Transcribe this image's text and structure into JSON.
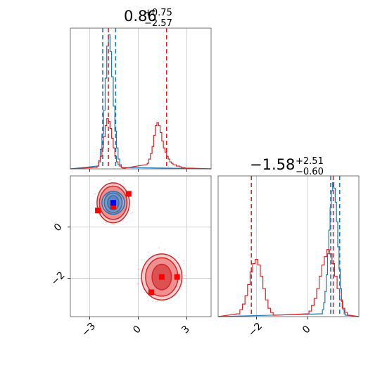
{
  "chart_data": [
    {
      "type": "histogram",
      "panel": "marginal-x",
      "title": {
        "value": "0.86",
        "upper": "+0.75",
        "lower": "−2.57"
      },
      "xlim": [
        -4.2,
        4.5
      ],
      "xticks": [
        -3,
        0,
        3
      ],
      "grid": true,
      "quantile_lines": [
        {
          "color": "#1f77b4",
          "values": [
            -2.2,
            -1.4
          ]
        },
        {
          "color": "#d62728",
          "values": [
            -1.85,
            1.75
          ]
        }
      ],
      "series": [
        {
          "color": "#1f77b4",
          "x": [
            -2.5,
            -2.4,
            -2.3,
            -2.2,
            -2.1,
            -2.0,
            -1.9,
            -1.8,
            -1.7,
            -1.6,
            -1.5,
            -1.4,
            -1.3,
            -1.2,
            -1.1,
            -1.0
          ],
          "values": [
            0.2,
            0.6,
            1.4,
            2.5,
            4.2,
            6.5,
            8.8,
            9.6,
            8.4,
            6.6,
            4.5,
            2.7,
            1.5,
            0.7,
            0.3,
            0.1
          ]
        },
        {
          "color": "#d62728",
          "x": [
            -2.6,
            -2.5,
            -2.4,
            -2.3,
            -2.2,
            -2.1,
            -2.0,
            -1.9,
            -1.8,
            -1.7,
            -1.6,
            -1.5,
            -1.4,
            -1.3,
            -1.2,
            -1.1,
            -1.0,
            -0.9,
            0.5,
            0.6,
            0.7,
            0.8,
            0.9,
            1.0,
            1.1,
            1.2,
            1.3,
            1.4,
            1.5,
            1.6,
            1.7,
            1.8,
            1.9,
            2.0,
            2.1,
            2.2,
            2.3,
            2.4,
            2.5,
            2.6,
            2.7,
            2.8,
            3.0,
            3.2
          ],
          "values": [
            0.1,
            0.2,
            0.5,
            0.9,
            1.5,
            2.3,
            3.1,
            3.6,
            3.4,
            2.9,
            2.2,
            1.5,
            0.9,
            0.5,
            0.3,
            0.2,
            0.1,
            0.05,
            0.3,
            0.4,
            0.7,
            1.1,
            1.6,
            2.4,
            3.1,
            3.3,
            3.1,
            2.6,
            2.0,
            1.5,
            1.2,
            0.9,
            0.7,
            0.5,
            0.4,
            0.3,
            0.3,
            0.2,
            0.2,
            0.15,
            0.1,
            0.1,
            0.05,
            0.05
          ]
        }
      ]
    },
    {
      "type": "contour",
      "panel": "joint",
      "xlim": [
        -4.2,
        4.5
      ],
      "ylim": [
        -3.5,
        2.0
      ],
      "xticks": [
        -3,
        0,
        3
      ],
      "yticks": [
        -2,
        0
      ],
      "grid": true,
      "modes": [
        {
          "color": "#d62728",
          "center": [
            -1.55,
            0.95
          ],
          "radii": [
            [
              0.55,
              0.45
            ],
            [
              0.85,
              0.65
            ],
            [
              1.0,
              0.78
            ]
          ]
        },
        {
          "color": "#1f77b4",
          "center": [
            -1.55,
            0.95
          ],
          "radii": [
            [
              0.35,
              0.28
            ],
            [
              0.55,
              0.38
            ],
            [
              0.7,
              0.45
            ]
          ]
        },
        {
          "color": "#d62728",
          "center": [
            1.45,
            -1.95
          ],
          "radii": [
            [
              0.6,
              0.5
            ],
            [
              1.0,
              0.75
            ],
            [
              1.25,
              0.9
            ]
          ]
        }
      ],
      "markers": [
        {
          "color": "#ff0000",
          "x": [
            -2.5,
            -0.6,
            -1.55,
            0.8,
            1.45,
            2.4
          ],
          "y": [
            0.65,
            1.3,
            0.8,
            -2.55,
            -1.95,
            -1.95
          ]
        },
        {
          "color": "#0000ff",
          "x": [
            -1.55
          ],
          "y": [
            0.95
          ]
        }
      ]
    },
    {
      "type": "histogram",
      "panel": "marginal-y",
      "title": {
        "value": "−1.58",
        "upper": "+2.51",
        "lower": "−0.60"
      },
      "xlim": [
        -3.5,
        2.0
      ],
      "xticks": [
        -2,
        0
      ],
      "grid": true,
      "quantile_lines": [
        {
          "color": "#1f77b4",
          "values": [
            0.9,
            1.25
          ]
        },
        {
          "color": "#d62728",
          "values": [
            -2.2,
            1.0
          ]
        }
      ],
      "series": [
        {
          "color": "#1f77b4",
          "x": [
            0.55,
            0.6,
            0.65,
            0.7,
            0.75,
            0.8,
            0.85,
            0.9,
            0.95,
            1.0,
            1.05,
            1.1,
            1.15,
            1.2,
            1.25,
            1.3,
            1.35,
            1.4,
            1.45,
            1.5
          ],
          "values": [
            0.2,
            0.5,
            1.0,
            1.8,
            3.0,
            4.5,
            6.2,
            7.8,
            9.0,
            9.6,
            9.2,
            8.2,
            6.8,
            5.0,
            3.4,
            2.0,
            1.1,
            0.5,
            0.2,
            0.1
          ]
        },
        {
          "color": "#d62728",
          "x": [
            -2.7,
            -2.6,
            -2.5,
            -2.4,
            -2.3,
            -2.2,
            -2.1,
            -2.0,
            -1.9,
            -1.8,
            -1.7,
            -1.6,
            -1.5,
            -1.4,
            -1.3,
            0.0,
            0.1,
            0.2,
            0.3,
            0.4,
            0.5,
            0.6,
            0.7,
            0.8,
            0.9,
            1.0,
            1.1,
            1.2,
            1.3,
            1.4,
            1.5,
            1.6
          ],
          "values": [
            0.2,
            0.5,
            0.9,
            1.5,
            2.3,
            3.2,
            3.8,
            4.1,
            3.7,
            2.9,
            2.0,
            1.2,
            0.6,
            0.3,
            0.1,
            0.2,
            0.4,
            0.8,
            1.3,
            2.0,
            2.9,
            3.7,
            4.3,
            4.8,
            4.5,
            3.8,
            2.9,
            2.0,
            1.2,
            0.6,
            0.3,
            0.1
          ]
        }
      ]
    }
  ]
}
